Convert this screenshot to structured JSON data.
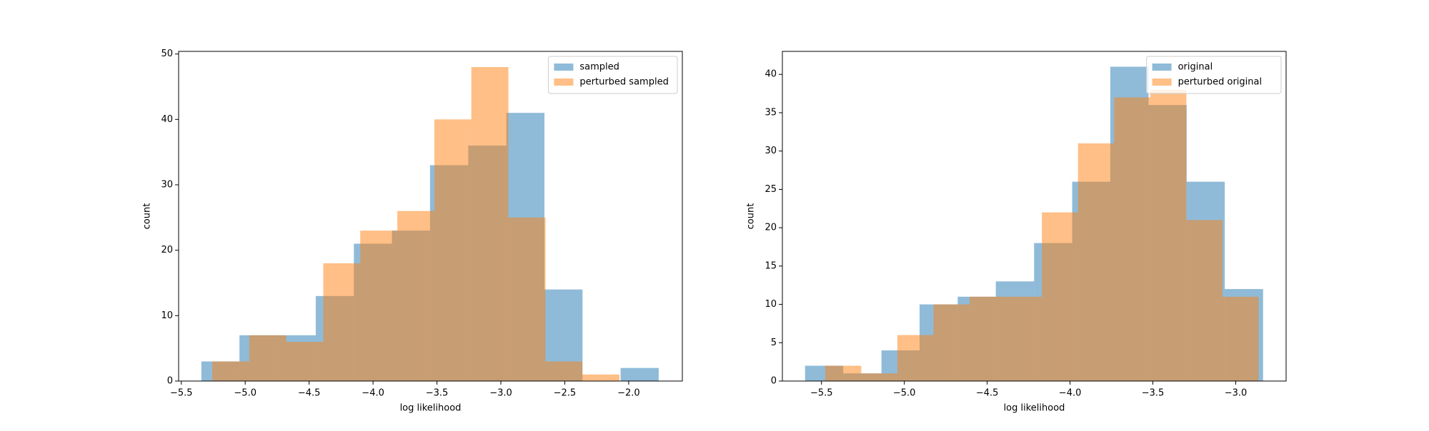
{
  "chart_data": [
    {
      "type": "histogram",
      "xlabel": "log likelihood",
      "ylabel": "count",
      "legend": "upper right",
      "xlim": [
        -5.521,
        -1.58
      ],
      "ylim": [
        0,
        50.4
      ],
      "xticks": [
        {
          "value": -5.5,
          "label": "−5.5"
        },
        {
          "value": -5.0,
          "label": "−5.0"
        },
        {
          "value": -4.5,
          "label": "−4.5"
        },
        {
          "value": -4.0,
          "label": "−4.0"
        },
        {
          "value": -3.5,
          "label": "−3.5"
        },
        {
          "value": -3.0,
          "label": "−3.0"
        },
        {
          "value": -2.5,
          "label": "−2.5"
        },
        {
          "value": -2.0,
          "label": "−2.0"
        }
      ],
      "yticks": [
        0,
        10,
        20,
        30,
        40,
        50
      ],
      "series": [
        {
          "name": "sampled",
          "color": "#1f77b4",
          "alpha": 0.5,
          "bins": [
            -5.343,
            -5.045,
            -4.747,
            -4.448,
            -4.15,
            -3.852,
            -3.554,
            -3.255,
            -2.957,
            -2.659,
            -2.361,
            -2.063,
            -1.765
          ],
          "values": [
            3,
            7,
            7,
            13,
            21,
            23,
            33,
            36,
            41,
            14,
            0,
            2
          ]
        },
        {
          "name": "perturbed sampled",
          "color": "#ff7f0e",
          "alpha": 0.5,
          "bins": [
            -5.258,
            -4.968,
            -4.679,
            -4.389,
            -4.1,
            -3.81,
            -3.52,
            -3.231,
            -2.941,
            -2.651,
            -2.362,
            -2.072
          ],
          "values": [
            3,
            7,
            6,
            18,
            23,
            26,
            40,
            48,
            25,
            3,
            1
          ]
        }
      ]
    },
    {
      "type": "histogram",
      "xlabel": "log likelihood",
      "ylabel": "count",
      "legend": "upper right",
      "xlim": [
        -5.736,
        -2.696
      ],
      "ylim": [
        0,
        43
      ],
      "xticks": [
        {
          "value": -5.5,
          "label": "−5.5"
        },
        {
          "value": -5.0,
          "label": "−5.0"
        },
        {
          "value": -4.5,
          "label": "−4.5"
        },
        {
          "value": -4.0,
          "label": "−4.0"
        },
        {
          "value": -3.5,
          "label": "−3.5"
        },
        {
          "value": -3.0,
          "label": "−3.0"
        }
      ],
      "yticks": [
        0,
        5,
        10,
        15,
        20,
        25,
        30,
        35,
        40
      ],
      "series": [
        {
          "name": "original",
          "color": "#1f77b4",
          "alpha": 0.5,
          "bins": [
            -5.599,
            -5.369,
            -5.138,
            -4.908,
            -4.678,
            -4.448,
            -4.217,
            -3.987,
            -3.757,
            -3.526,
            -3.296,
            -3.066,
            -2.835
          ],
          "values": [
            2,
            1,
            4,
            10,
            11,
            13,
            18,
            26,
            41,
            36,
            26,
            12
          ]
        },
        {
          "name": "perturbed original",
          "color": "#ff7f0e",
          "alpha": 0.5,
          "bins": [
            -5.478,
            -5.26,
            -5.042,
            -4.824,
            -4.606,
            -4.388,
            -4.17,
            -3.952,
            -3.734,
            -3.516,
            -3.298,
            -3.08,
            -2.862
          ],
          "values": [
            2,
            1,
            6,
            10,
            11,
            11,
            22,
            31,
            37,
            38,
            21,
            11
          ]
        }
      ]
    }
  ]
}
